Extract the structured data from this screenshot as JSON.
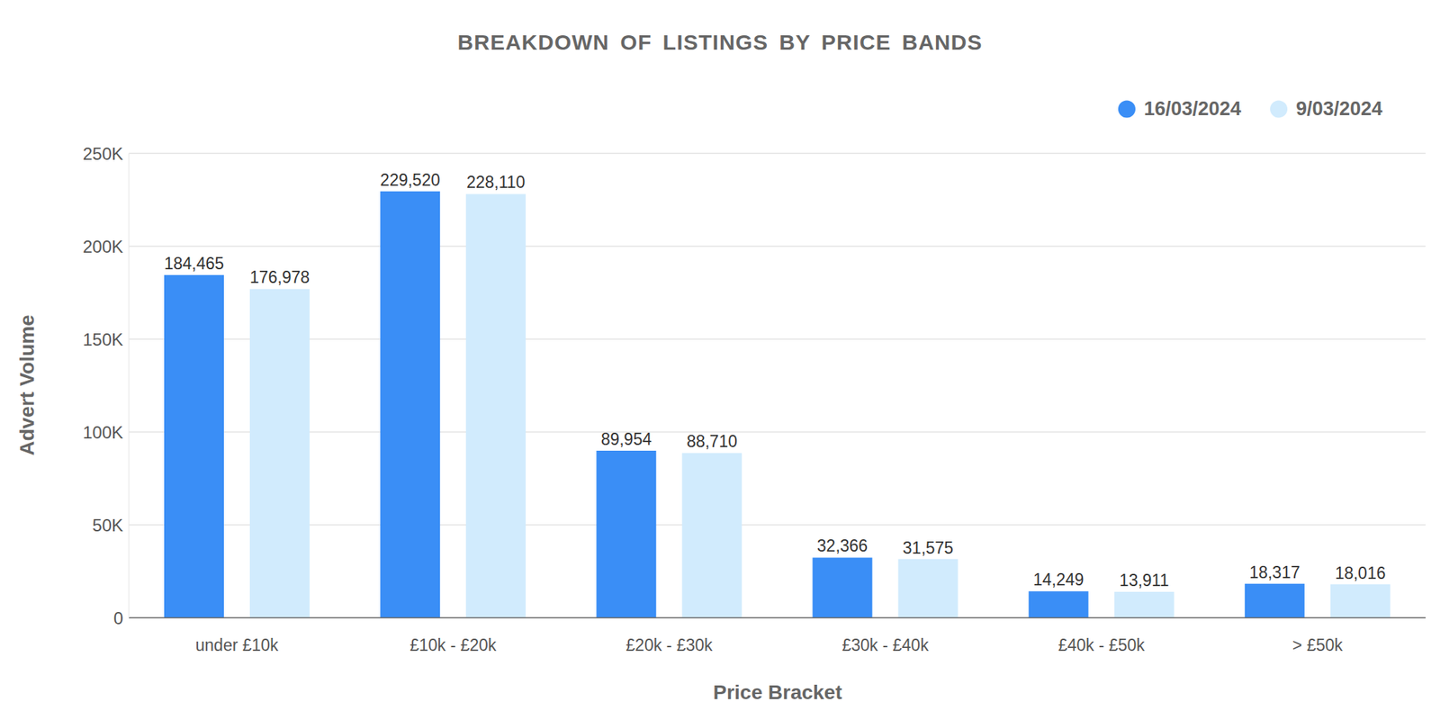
{
  "chart_data": {
    "type": "bar",
    "title": "BREAKDOWN OF LISTINGS BY PRICE BANDS",
    "x_label": "Price Bracket",
    "y_label": "Advert Volume",
    "categories": [
      "under £10k",
      "£10k - £20k",
      "£20k - £30k",
      "£30k - £40k",
      "£40k - £50k",
      "> £50k"
    ],
    "series": [
      {
        "name": "16/03/2024",
        "color": "#3a8ef6",
        "values": [
          184465,
          229520,
          89954,
          32366,
          14249,
          18317
        ],
        "value_labels": [
          "184,465",
          "229,520",
          "89,954",
          "32,366",
          "14,249",
          "18,317"
        ]
      },
      {
        "name": "9/03/2024",
        "color": "#d1ebfd",
        "values": [
          176978,
          228110,
          88710,
          31575,
          13911,
          18016
        ],
        "value_labels": [
          "176,978",
          "228,110",
          "88,710",
          "31,575",
          "13,911",
          "18,016"
        ]
      }
    ],
    "ylim": [
      0,
      250000
    ],
    "yticks": [
      0,
      {
        "value": 50000,
        "label": "50K"
      },
      {
        "value": 100000,
        "label": "100K"
      },
      {
        "value": 150000,
        "label": "150K"
      },
      {
        "value": 200000,
        "label": "200K"
      },
      {
        "value": 250000,
        "label": "250K"
      }
    ],
    "grid": true,
    "legend": "top right",
    "data_labels": true
  }
}
